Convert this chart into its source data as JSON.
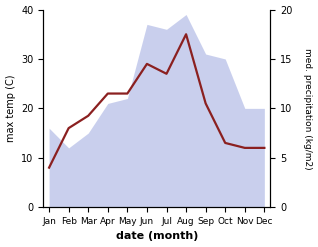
{
  "months": [
    "Jan",
    "Feb",
    "Mar",
    "Apr",
    "May",
    "Jun",
    "Jul",
    "Aug",
    "Sep",
    "Oct",
    "Nov",
    "Dec"
  ],
  "max_temp": [
    8,
    16,
    18.5,
    23,
    23,
    29,
    27,
    35,
    21,
    13,
    12,
    12
  ],
  "precipitation_left_scale": [
    16,
    12,
    15,
    21,
    22,
    37,
    36,
    39,
    31,
    30,
    20,
    20
  ],
  "temp_color": "#8b2020",
  "precip_fill_color": "#b8c0e8",
  "precip_fill_alpha": 0.75,
  "ylabel_left": "max temp (C)",
  "ylabel_right": "med. precipitation (kg/m2)",
  "xlabel": "date (month)",
  "ylim_left": [
    0,
    40
  ],
  "ylim_right": [
    0,
    20
  ],
  "right_ticks": [
    0,
    5,
    10,
    15,
    20
  ],
  "left_ticks": [
    0,
    10,
    20,
    30,
    40
  ],
  "bg_color": "#ffffff",
  "temp_linewidth": 1.6,
  "figsize": [
    3.18,
    2.47
  ],
  "dpi": 100
}
